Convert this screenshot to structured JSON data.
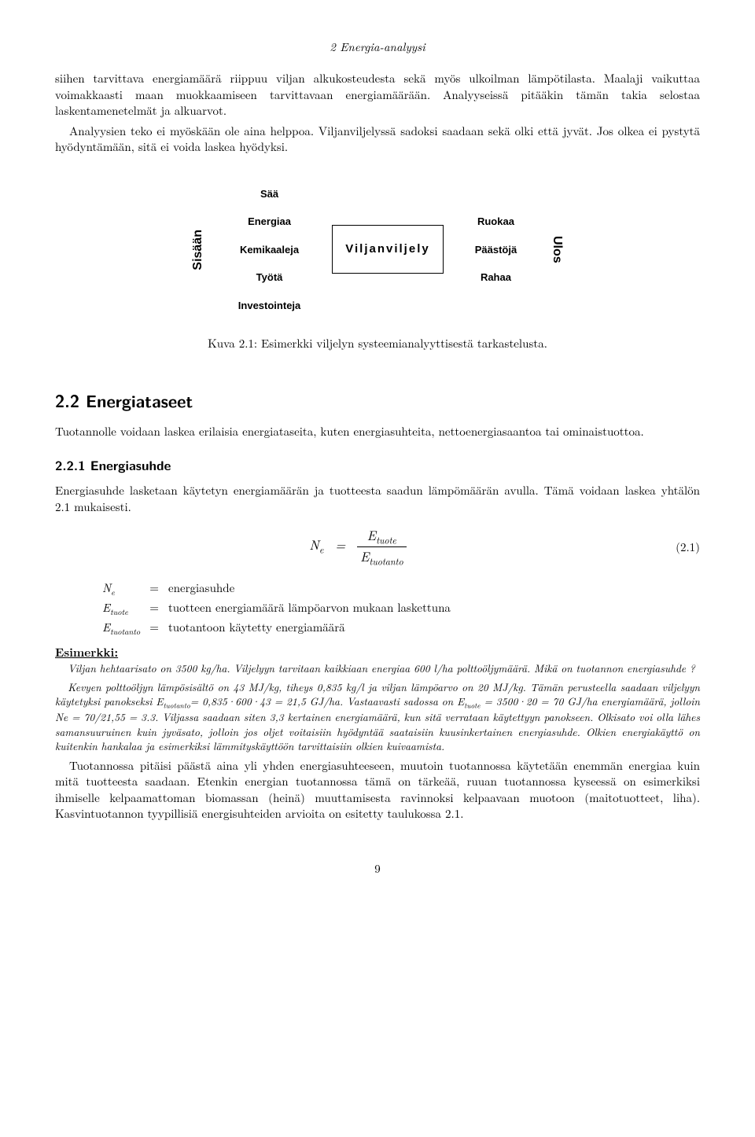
{
  "header": "2 Energia-analyysi",
  "intro_p1": "siihen tarvittava energiamäärä riippuu viljan alkukosteudesta sekä myös ulkoilman lämpötilasta. Maalaji vaikuttaa voimakkaasti maan muokkaamiseen tarvittavaan energiamäärään. Analyyseissä pitääkin tämän takia selostaa laskentamenetelmät ja alkuarvot.",
  "intro_p2": "Analyysien teko ei myöskään ole aina helppoa. Viljanviljelyssä sadoksi saadaan sekä olki että jyvät. Jos olkea ei pystytä hyödyntämään, sitä ei voida laskea hyödyksi.",
  "figure": {
    "left_label": "Sisään",
    "right_label": "Ulos",
    "inputs": [
      "Sää",
      "Energiaa",
      "Kemikaaleja",
      "Työtä",
      "Investointeja"
    ],
    "process": "Viljanviljely",
    "outputs": [
      "Ruokaa",
      "Päästöjä",
      "Rahaa"
    ],
    "caption": "Kuva 2.1: Esimerkki viljelyn systeemianalyyttisestä tarkastelusta."
  },
  "sec22_title": "2.2 Energiataseet",
  "sec22_p": "Tuotannolle voidaan laskea erilaisia energiataseita, kuten energiasuhteita, nettoenergiasaantoa tai ominaistuottoa.",
  "sec221_title": "2.2.1 Energiasuhde",
  "sec221_p": "Energiasuhde lasketaan käytetyn energiamäärän ja tuotteesta saadun lämpömäärän avulla. Tämä voidaan laskea yhtälön 2.1 mukaisesti.",
  "eq": {
    "lhs": "N",
    "lhs_sub": "e",
    "num_base": "E",
    "num_sub": "tuote",
    "den_base": "E",
    "den_sub": "tuotanto",
    "number": "(2.1)"
  },
  "defs": [
    {
      "sym": "N",
      "sub": "e",
      "desc": "energiasuhde"
    },
    {
      "sym": "E",
      "sub": "tuote",
      "desc": "tuotteen energiamäärä lämpöarvon mukaan laskettuna"
    },
    {
      "sym": "E",
      "sub": "tuotanto",
      "desc": "tuotantoon käytetty energiamäärä"
    }
  ],
  "example": {
    "header": "Esimerkki:",
    "p1": "Viljan hehtaarisato on 3500 kg/ha. Viljelyyn tarvitaan kaikkiaan energiaa 600 l/ha polttoöljymäärä. Mikä on tuotannon energiasuhde ?",
    "p2a": "Kevyen polttoöljyn lämpösisältö on 43 MJ/kg, tiheys 0,835 kg/l ja viljan lämpöarvo on 20 MJ/kg. Tämän perusteella saadaan viljelyyn käytetyksi panokseksi E",
    "p2a_sub": "tuotanto",
    "p2b": "= 0,835·600·43 = 21,5 GJ/ha. Vastaavasti sadossa on E",
    "p2b_sub": "tuote",
    "p2c": " = 3500·20 = 70 GJ/ha energiamäärä, jolloin Ne = 70/21,55 = 3.3. Viljassa saadaan siten 3,3 kertainen energiamäärä, kun sitä verrataan käytettyyn panokseen. Olkisato voi olla lähes samansuuruinen kuin jyväsato, jolloin jos oljet voitaisiin hyödyntää saataisiin kuusinkertainen energiasuhde. Olkien energiakäyttö on kuitenkin hankalaa ja esimerkiksi lämmityskäyttöön tarvittaisiin olkien kuivaamista."
  },
  "closing": "Tuotannossa pitäisi päästä aina yli yhden energiasuhteeseen, muutoin tuotannossa käytetään enemmän energiaa kuin mitä tuotteesta saadaan. Etenkin energian tuotannossa tämä on tärkeää, ruuan tuotannossa kyseessä on esimerkiksi ihmiselle kelpaamattoman biomassan (heinä) muuttamisesta ravinnoksi kelpaavaan muotoon (maitotuotteet, liha). Kasvintuotannon tyypillisiä energisuhteiden arvioita on esitetty taulukossa 2.1.",
  "page_number": "9"
}
